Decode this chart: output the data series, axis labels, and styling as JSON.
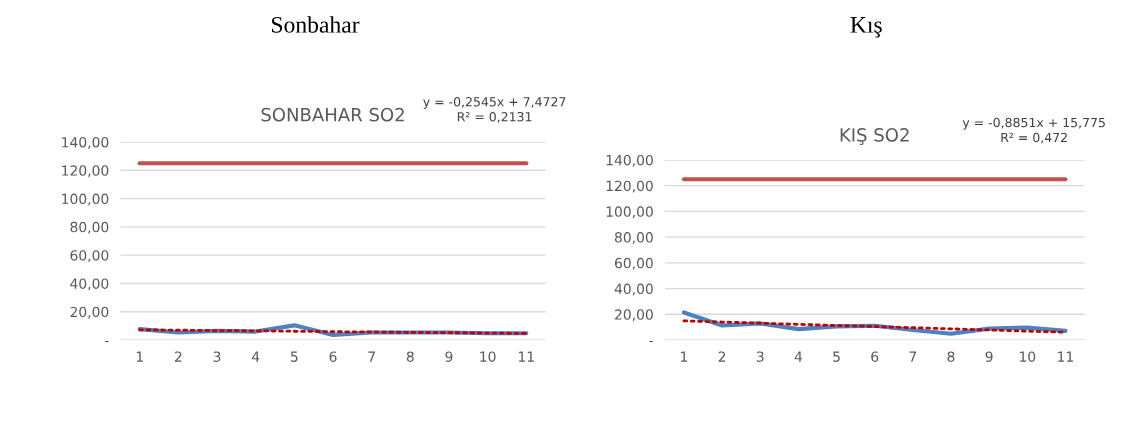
{
  "chart_data": [
    {
      "type": "line",
      "title": "Sonbahar",
      "subtitle": "SONBAHAR SO2",
      "annotations": [
        "y = -0,2545x + 7,4727\nR² = 0,2131"
      ],
      "x": [
        1,
        2,
        3,
        4,
        5,
        6,
        7,
        8,
        9,
        10,
        11
      ],
      "xlim": [
        0.5,
        11.5
      ],
      "xticks": [
        1,
        2,
        3,
        4,
        5,
        6,
        7,
        8,
        9,
        10,
        11
      ],
      "ylim": [
        0,
        140
      ],
      "yticks": [
        {
          "value": 0,
          "label": "-"
        },
        {
          "value": 20,
          "label": "20,00"
        },
        {
          "value": 40,
          "label": "40,00"
        },
        {
          "value": 60,
          "label": "60,00"
        },
        {
          "value": 80,
          "label": "80,00"
        },
        {
          "value": 100,
          "label": "100,00"
        },
        {
          "value": 120,
          "label": "120,00"
        },
        {
          "value": 140,
          "label": "140,00"
        }
      ],
      "grid": "y",
      "series": [
        {
          "color": "#c0504d",
          "values": [
            125,
            125,
            125,
            125,
            125,
            125,
            125,
            125,
            125,
            125,
            125
          ]
        },
        {
          "color": "#4f81bd",
          "values": [
            7.7,
            5.3,
            6.5,
            6.0,
            10.4,
            3.6,
            5.3,
            5.3,
            5.3,
            4.8,
            4.8
          ]
        },
        {
          "type": "line",
          "color": "#c00000",
          "line_style": "dotted",
          "x": [
            1,
            2,
            3,
            4,
            5,
            6,
            7,
            8,
            9,
            10,
            11
          ],
          "values": [
            7.2,
            7.0,
            6.7,
            6.5,
            6.2,
            5.9,
            5.7,
            5.4,
            5.2,
            4.9,
            4.7
          ]
        }
      ]
    },
    {
      "type": "line",
      "title": "Kış",
      "subtitle": "KIŞ SO2",
      "annotations": [
        "y = -0,8851x + 15,775\nR² = 0,472"
      ],
      "x": [
        1,
        2,
        3,
        4,
        5,
        6,
        7,
        8,
        9,
        10,
        11
      ],
      "xlim": [
        0.5,
        11.5
      ],
      "xticks": [
        1,
        2,
        3,
        4,
        5,
        6,
        7,
        8,
        9,
        10,
        11
      ],
      "ylim": [
        0,
        140
      ],
      "yticks": [
        {
          "value": 0,
          "label": "-"
        },
        {
          "value": 20,
          "label": "20,00"
        },
        {
          "value": 40,
          "label": "40,00"
        },
        {
          "value": 60,
          "label": "60,00"
        },
        {
          "value": 80,
          "label": "80,00"
        },
        {
          "value": 100,
          "label": "100,00"
        },
        {
          "value": 120,
          "label": "120,00"
        },
        {
          "value": 140,
          "label": "140,00"
        }
      ],
      "grid": "y",
      "series": [
        {
          "color": "#c0504d",
          "values": [
            125,
            125,
            125,
            125,
            125,
            125,
            125,
            125,
            125,
            125,
            125
          ]
        },
        {
          "color": "#4f81bd",
          "values": [
            21.4,
            11.3,
            12.9,
            8.5,
            10.6,
            11.1,
            7.8,
            4.9,
            8.9,
            9.6,
            7.1
          ]
        },
        {
          "type": "line",
          "color": "#c00000",
          "line_style": "dotted",
          "x": [
            1,
            2,
            3,
            4,
            5,
            6,
            7,
            8,
            9,
            10,
            11
          ],
          "values": [
            14.9,
            14.0,
            13.1,
            12.2,
            11.3,
            10.5,
            9.6,
            8.7,
            7.8,
            6.9,
            6.0
          ]
        }
      ]
    }
  ]
}
